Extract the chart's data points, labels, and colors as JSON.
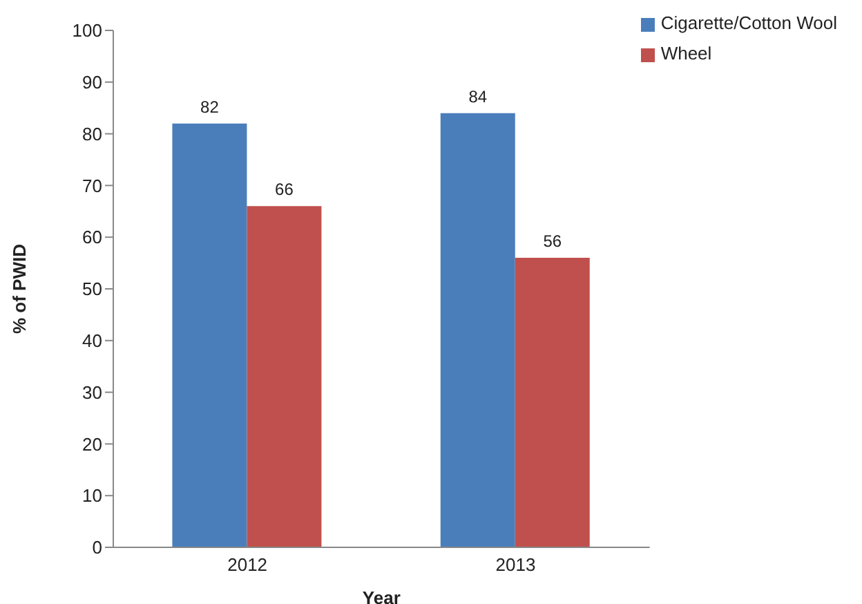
{
  "chart_data": {
    "type": "bar",
    "xlabel": "Year",
    "ylabel": "% of PWID",
    "categories": [
      "2012",
      "2013"
    ],
    "series": [
      {
        "name": "Cigarette/Cotton Wool",
        "color": "#4a7ebb",
        "values": [
          82,
          84
        ]
      },
      {
        "name": "Wheel",
        "color": "#c0504d",
        "values": [
          66,
          56
        ]
      }
    ],
    "ylim": [
      0,
      100
    ],
    "yticks": [
      0,
      10,
      20,
      30,
      40,
      50,
      60,
      70,
      80,
      90,
      100
    ],
    "grid": false,
    "legend": "top right",
    "data_labels": true
  }
}
